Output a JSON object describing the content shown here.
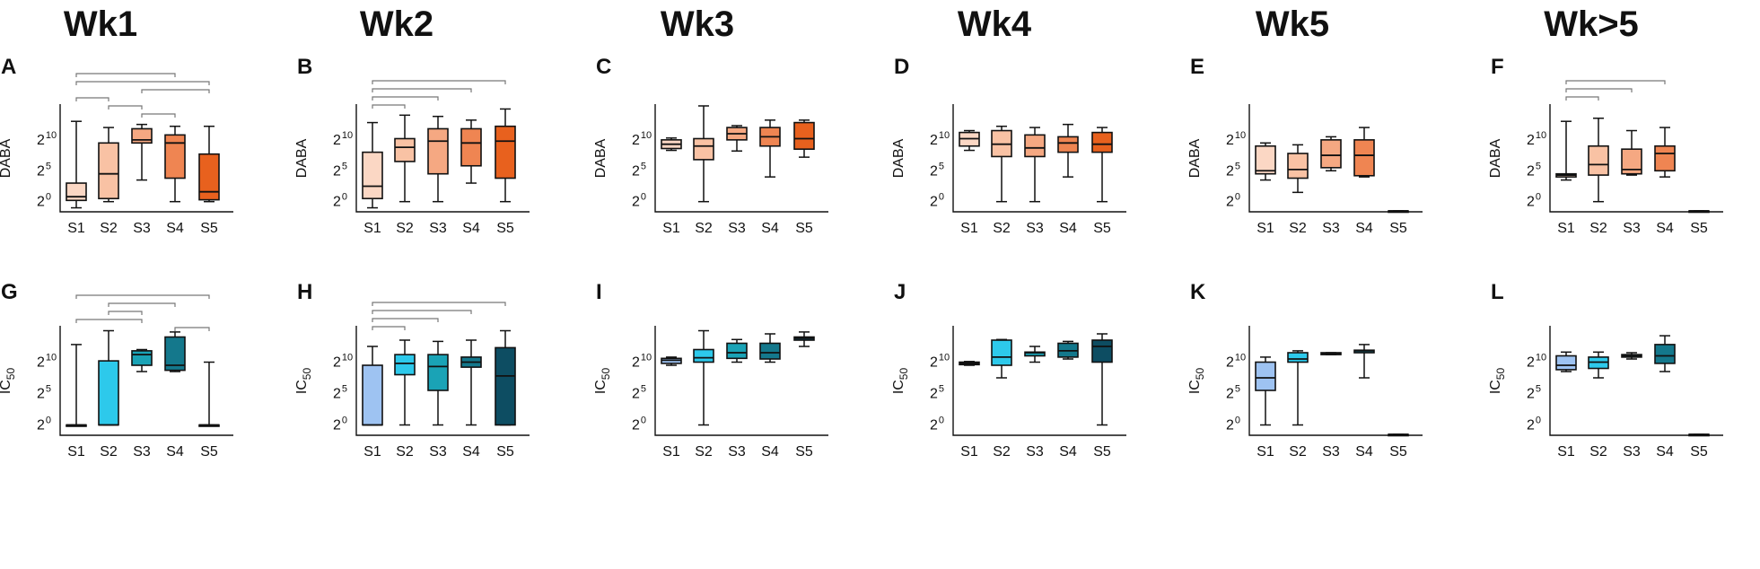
{
  "colors": {
    "dabaFill": [
      "#fbd7c4",
      "#f9c2a4",
      "#f5a882",
      "#ef8552",
      "#e8611e"
    ],
    "icFill": [
      "#9ec3f2",
      "#2dc9eb",
      "#1aa3b6",
      "#14788c",
      "#0d4d62"
    ]
  },
  "chart_data": {
    "type": "boxplot",
    "columns": [
      "Wk1",
      "Wk2",
      "Wk3",
      "Wk4",
      "Wk5",
      "Wk>5"
    ],
    "categories": [
      "S1",
      "S2",
      "S3",
      "S4",
      "S5"
    ],
    "ytick_base": "2",
    "yticks_exp": [
      "0",
      "5",
      "10"
    ],
    "panels": [
      {
        "letter": "A",
        "row": 0,
        "col": 0,
        "ylabel": "DABA",
        "ylabel_sub": "",
        "series": [
          {
            "min": -1,
            "q1": 0.2,
            "median": 0.8,
            "q3": 3,
            "max": 13
          },
          {
            "min": 0,
            "q1": 0.5,
            "median": 4.5,
            "q3": 9.5,
            "max": 12
          },
          {
            "min": 3.5,
            "q1": 9.5,
            "median": 10,
            "q3": 11.8,
            "max": 12.5
          },
          {
            "min": 0,
            "q1": 3.8,
            "median": 9.5,
            "q3": 10.8,
            "max": 12.2
          },
          {
            "min": 0,
            "q1": 0.3,
            "median": 1.6,
            "q3": 7.7,
            "max": 12.2
          }
        ],
        "sig": [
          [
            0,
            3
          ],
          [
            0,
            4
          ],
          [
            2,
            4
          ],
          [
            0,
            1
          ],
          [
            1,
            2
          ],
          [
            2,
            3
          ]
        ]
      },
      {
        "letter": "B",
        "row": 0,
        "col": 1,
        "ylabel": "DABA",
        "ylabel_sub": "",
        "series": [
          {
            "min": -1,
            "q1": 0.5,
            "median": 2.5,
            "q3": 8,
            "max": 12.8
          },
          {
            "min": 0,
            "q1": 6.5,
            "median": 8.8,
            "q3": 10.2,
            "max": 14
          },
          {
            "min": 0,
            "q1": 4.5,
            "median": 9.8,
            "q3": 11.8,
            "max": 13.8
          },
          {
            "min": 3,
            "q1": 5.8,
            "median": 9.5,
            "q3": 11.8,
            "max": 13.2
          },
          {
            "min": 0,
            "q1": 3.8,
            "median": 9.8,
            "q3": 12.2,
            "max": 15
          }
        ],
        "sig": [
          [
            0,
            4
          ],
          [
            0,
            3
          ],
          [
            0,
            2
          ],
          [
            0,
            1
          ]
        ]
      },
      {
        "letter": "C",
        "row": 0,
        "col": 2,
        "ylabel": "DABA",
        "ylabel_sub": "",
        "series": [
          {
            "min": 8.3,
            "q1": 8.6,
            "median": 9.3,
            "q3": 10,
            "max": 10.3
          },
          {
            "min": 0,
            "q1": 6.8,
            "median": 9,
            "q3": 10.2,
            "max": 15.5
          },
          {
            "min": 8.2,
            "q1": 10,
            "median": 11,
            "q3": 12,
            "max": 12.3
          },
          {
            "min": 4,
            "q1": 9,
            "median": 10.5,
            "q3": 12,
            "max": 13.2
          },
          {
            "min": 7.2,
            "q1": 8.5,
            "median": 10.2,
            "q3": 12.8,
            "max": 13.2
          }
        ],
        "sig": []
      },
      {
        "letter": "D",
        "row": 0,
        "col": 3,
        "ylabel": "DABA",
        "ylabel_sub": "",
        "series": [
          {
            "min": 8.3,
            "q1": 9,
            "median": 10.2,
            "q3": 11.2,
            "max": 11.5
          },
          {
            "min": 0,
            "q1": 7.3,
            "median": 9.3,
            "q3": 11.5,
            "max": 12.2
          },
          {
            "min": 0,
            "q1": 7.3,
            "median": 8.7,
            "q3": 10.8,
            "max": 12
          },
          {
            "min": 4,
            "q1": 8,
            "median": 9.5,
            "q3": 10.5,
            "max": 12.5
          },
          {
            "min": 0,
            "q1": 8,
            "median": 9.3,
            "q3": 11.2,
            "max": 12
          }
        ],
        "sig": []
      },
      {
        "letter": "E",
        "row": 0,
        "col": 4,
        "ylabel": "DABA",
        "ylabel_sub": "",
        "series": [
          {
            "min": 3.5,
            "q1": 4.5,
            "median": 5,
            "q3": 9,
            "max": 9.5
          },
          {
            "min": 1.5,
            "q1": 3.8,
            "median": 5.2,
            "q3": 7.8,
            "max": 9.2
          },
          {
            "min": 5,
            "q1": 5.5,
            "median": 7.5,
            "q3": 10,
            "max": 10.5
          },
          {
            "min": 4,
            "q1": 4.2,
            "median": 7.5,
            "q3": 10,
            "max": 12
          },
          {
            "min": -1.5,
            "q1": -1.5,
            "median": -1.5,
            "q3": -1.5,
            "max": -1.5
          }
        ],
        "sig": []
      },
      {
        "letter": "F",
        "row": 0,
        "col": 5,
        "ylabel": "DABA",
        "ylabel_sub": "",
        "series": [
          {
            "min": 3.5,
            "q1": 4,
            "median": 4.3,
            "q3": 4.5,
            "max": 13
          },
          {
            "min": 0,
            "q1": 4.3,
            "median": 6,
            "q3": 9,
            "max": 13.5
          },
          {
            "min": 4.3,
            "q1": 4.5,
            "median": 5.2,
            "q3": 8.5,
            "max": 11.5
          },
          {
            "min": 4,
            "q1": 5,
            "median": 7.8,
            "q3": 9,
            "max": 12
          },
          {
            "min": -1.5,
            "q1": -1.5,
            "median": -1.5,
            "q3": -1.5,
            "max": -1.5
          }
        ],
        "sig": [
          [
            0,
            3
          ],
          [
            0,
            2
          ],
          [
            0,
            1
          ]
        ]
      },
      {
        "letter": "G",
        "row": 1,
        "col": 0,
        "ylabel": "IC",
        "ylabel_sub": "50",
        "series": [
          {
            "min": 0,
            "q1": 0,
            "median": 0,
            "q3": 0,
            "max": 12.8
          },
          {
            "min": 0,
            "q1": 0,
            "median": 0,
            "q3": 10.2,
            "max": 15
          },
          {
            "min": 8.5,
            "q1": 9.5,
            "median": 11.2,
            "q3": 11.8,
            "max": 12
          },
          {
            "min": 8.5,
            "q1": 8.7,
            "median": 9.5,
            "q3": 14,
            "max": 14.8
          },
          {
            "min": 0,
            "q1": 0,
            "median": 0,
            "q3": 0,
            "max": 10
          }
        ],
        "sig": [
          [
            0,
            4
          ],
          [
            1,
            3
          ],
          [
            1,
            2
          ],
          [
            0,
            2
          ],
          [
            3,
            4
          ]
        ]
      },
      {
        "letter": "H",
        "row": 1,
        "col": 1,
        "ylabel": "IC",
        "ylabel_sub": "50",
        "series": [
          {
            "min": 0,
            "q1": 0,
            "median": 0,
            "q3": 9.5,
            "max": 12.5
          },
          {
            "min": 0,
            "q1": 8,
            "median": 9.8,
            "q3": 11.2,
            "max": 13.5
          },
          {
            "min": 0,
            "q1": 5.5,
            "median": 9.3,
            "q3": 11.2,
            "max": 13.3
          },
          {
            "min": 0,
            "q1": 9.2,
            "median": 10,
            "q3": 10.8,
            "max": 13.5
          },
          {
            "min": 0,
            "q1": 0,
            "median": 7.8,
            "q3": 12.3,
            "max": 15
          }
        ],
        "sig": [
          [
            0,
            4
          ],
          [
            0,
            3
          ],
          [
            0,
            2
          ],
          [
            0,
            1
          ]
        ]
      },
      {
        "letter": "I",
        "row": 1,
        "col": 2,
        "ylabel": "IC",
        "ylabel_sub": "50",
        "series": [
          {
            "min": 9.5,
            "q1": 9.8,
            "median": 10.3,
            "q3": 10.6,
            "max": 10.8
          },
          {
            "min": 0,
            "q1": 10,
            "median": 10.7,
            "q3": 12,
            "max": 15
          },
          {
            "min": 10,
            "q1": 10.6,
            "median": 11.5,
            "q3": 13,
            "max": 13.6
          },
          {
            "min": 10,
            "q1": 10.5,
            "median": 11.5,
            "q3": 13,
            "max": 14.5
          },
          {
            "min": 12.5,
            "q1": 13.5,
            "median": 13.8,
            "q3": 14,
            "max": 14.8
          }
        ],
        "sig": []
      },
      {
        "letter": "J",
        "row": 1,
        "col": 3,
        "ylabel": "IC",
        "ylabel_sub": "50",
        "series": [
          {
            "min": 9.5,
            "q1": 9.6,
            "median": 9.8,
            "q3": 10,
            "max": 10.1
          },
          {
            "min": 7.5,
            "q1": 9.5,
            "median": 10.8,
            "q3": 13.5,
            "max": 13.6
          },
          {
            "min": 10,
            "q1": 11,
            "median": 11.5,
            "q3": 11.6,
            "max": 12.5
          },
          {
            "min": 10.5,
            "q1": 10.8,
            "median": 11.8,
            "q3": 13,
            "max": 13.3
          },
          {
            "min": 0,
            "q1": 10,
            "median": 12.5,
            "q3": 13.5,
            "max": 14.5
          }
        ],
        "sig": []
      },
      {
        "letter": "K",
        "row": 1,
        "col": 4,
        "ylabel": "IC",
        "ylabel_sub": "50",
        "series": [
          {
            "min": 0,
            "q1": 5.5,
            "median": 7.5,
            "q3": 10,
            "max": 10.8
          },
          {
            "min": 0,
            "q1": 10,
            "median": 10.5,
            "q3": 11.5,
            "max": 11.8
          },
          {
            "min": 11.2,
            "q1": 11.2,
            "median": 11.4,
            "q3": 11.5,
            "max": 11.5
          },
          {
            "min": 7.5,
            "q1": 11.5,
            "median": 11.8,
            "q3": 11.9,
            "max": 12.8
          },
          {
            "min": -1.5,
            "q1": -1.5,
            "median": -1.5,
            "q3": -1.5,
            "max": -1.5
          }
        ],
        "sig": []
      },
      {
        "letter": "L",
        "row": 1,
        "col": 5,
        "ylabel": "IC",
        "ylabel_sub": "50",
        "series": [
          {
            "min": 8.5,
            "q1": 8.8,
            "median": 9.5,
            "q3": 11,
            "max": 11.6
          },
          {
            "min": 7.5,
            "q1": 9,
            "median": 10,
            "q3": 10.8,
            "max": 11.6
          },
          {
            "min": 10.5,
            "q1": 10.8,
            "median": 11,
            "q3": 11.2,
            "max": 11.5
          },
          {
            "min": 8.5,
            "q1": 9.8,
            "median": 11,
            "q3": 12.8,
            "max": 14.2
          },
          {
            "min": -1.5,
            "q1": -1.5,
            "median": -1.5,
            "q3": -1.5,
            "max": -1.5
          }
        ],
        "sig": []
      }
    ]
  }
}
